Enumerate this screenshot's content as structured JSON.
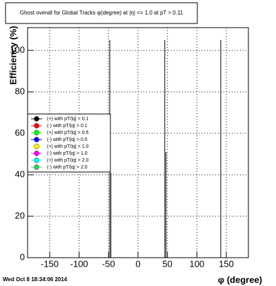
{
  "chart_data": {
    "type": "spike",
    "title": "Ghost overall for Global Tracks φ(degree) at |η| <= 1.0 at pT > 0.11",
    "x_label": "φ (degree)",
    "y_label": "Efficiency (%)",
    "footer": "Wed Oct  8 18:34:06 2014",
    "xlim": [
      -187.5,
      187.5
    ],
    "ylim": [
      0,
      111
    ],
    "xticks": [
      -150,
      -100,
      -50,
      0,
      50,
      100,
      150
    ],
    "yticks": [
      0,
      20,
      40,
      60,
      80,
      100
    ],
    "grid": true,
    "x": [
      -48,
      -46,
      45.5,
      47.5,
      140.5
    ],
    "values": [
      105,
      41,
      105,
      51,
      105
    ],
    "color": "#000000",
    "legend": [
      {
        "name": "(+) with pT/|q| > 0.1",
        "color": "#000000"
      },
      {
        "name": "(-) with pT/|q| > 0.1",
        "color": "#ff0000"
      },
      {
        "name": "(+) with pT/|q| > 0.5",
        "color": "#00ff00"
      },
      {
        "name": "(-) with pT/|q| > 0.5",
        "color": "#0000ff"
      },
      {
        "name": "(+) with pT/|q| > 1.0",
        "color": "#ffff00"
      },
      {
        "name": "(-) with pT/|q| > 1.0",
        "color": "#ff00ff"
      },
      {
        "name": "(+) with pT/|q| > 2.0",
        "color": "#00ffff"
      },
      {
        "name": "(-) with pT/|q| > 2.0",
        "color": "#33cc66"
      }
    ]
  }
}
